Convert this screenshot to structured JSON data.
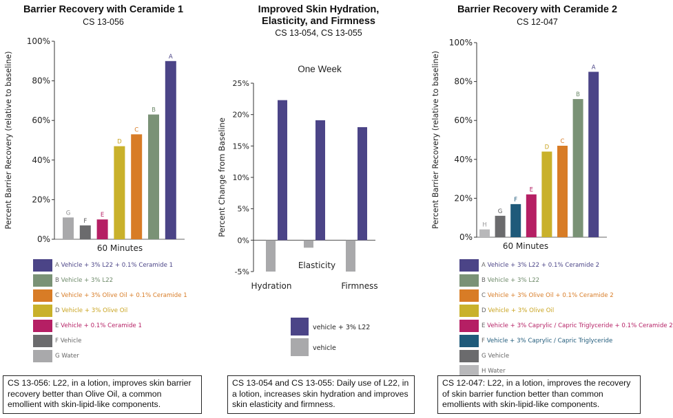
{
  "chart_data": [
    {
      "type": "bar",
      "title": "Barrier Recovery with Ceramide 1",
      "subtitle": "CS 13-056",
      "ylabel": "Percent Barrier Recovery (relative to baseline)",
      "xlabel": "60 Minutes",
      "ylim": [
        0,
        100
      ],
      "yticks": [
        "0%",
        "20%",
        "40%",
        "60%",
        "80%",
        "100%"
      ],
      "categories": [
        "G",
        "F",
        "E",
        "D",
        "C",
        "B",
        "A"
      ],
      "values": [
        11,
        7,
        10,
        47,
        53,
        63,
        90
      ],
      "colors": [
        "#a9a9ab",
        "#6b6b6d",
        "#b51f64",
        "#c9b12b",
        "#d87c26",
        "#7a9276",
        "#4b4487"
      ],
      "label_colors": [
        "#8a8a8c",
        "#555557",
        "#b51f64",
        "#c9a420",
        "#d87c26",
        "#6e8a6a",
        "#4b4487"
      ],
      "legend": [
        {
          "key": "A",
          "text": "Vehicle + 3% L22 + 0.1% Ceramide 1",
          "color": "#4b4487"
        },
        {
          "key": "B",
          "text": "Vehicle + 3% L22",
          "color": "#7a9276"
        },
        {
          "key": "C",
          "text": "Vehicle + 3% Olive Oil + 0.1% Ceramide 1",
          "color": "#d87c26"
        },
        {
          "key": "D",
          "text": "Vehicle + 3% Olive Oil",
          "color": "#c9b12b"
        },
        {
          "key": "E",
          "text": "Vehicle + 0.1% Ceramide 1",
          "color": "#b51f64"
        },
        {
          "key": "F",
          "text": "Vehicle",
          "color": "#6b6b6d"
        },
        {
          "key": "G",
          "text": "Water",
          "color": "#a9a9ab"
        }
      ]
    },
    {
      "type": "bar",
      "title": "Improved Skin Hydration, Elasticity, and Firmness",
      "subtitle": "CS 13-054, CS 13-055",
      "inner_title": "One Week",
      "ylabel": "Percent Change from Baseline",
      "ylim": [
        -5,
        25
      ],
      "yticks": [
        "-5%",
        "0%",
        "5%",
        "10%",
        "15%",
        "20%",
        "25%"
      ],
      "categories": [
        "Hydration",
        "Elasticity",
        "Firmness"
      ],
      "series": [
        {
          "name": "vehicle",
          "values": [
            -5,
            -1.2,
            -5
          ],
          "color": "#a9a9ab"
        },
        {
          "name": "vehicle + 3% L22",
          "values": [
            22.3,
            19.1,
            18
          ],
          "color": "#4b4487"
        }
      ]
    },
    {
      "type": "bar",
      "title": "Barrier Recovery with Ceramide 2",
      "subtitle": "CS 12-047",
      "ylabel": "Percent Barrier Recovery (relative to baseline)",
      "xlabel": "60 Minutes",
      "ylim": [
        0,
        100
      ],
      "yticks": [
        "0%",
        "20%",
        "40%",
        "60%",
        "80%",
        "100%"
      ],
      "categories": [
        "H",
        "G",
        "F",
        "E",
        "D",
        "C",
        "B",
        "A"
      ],
      "values": [
        4,
        11,
        17,
        22,
        44,
        47,
        71,
        85
      ],
      "colors": [
        "#b8b8ba",
        "#6b6b6d",
        "#1f5a7a",
        "#b51f64",
        "#c9b12b",
        "#d87c26",
        "#7a9276",
        "#4b4487"
      ],
      "label_colors": [
        "#9a9a9c",
        "#555557",
        "#1f5a7a",
        "#b51f64",
        "#c9a420",
        "#d87c26",
        "#6e8a6a",
        "#4b4487"
      ],
      "legend": [
        {
          "key": "A",
          "text": "Vehicle + 3% L22 + 0.1% Ceramide 2",
          "color": "#4b4487"
        },
        {
          "key": "B",
          "text": "Vehicle + 3% L22",
          "color": "#7a9276"
        },
        {
          "key": "C",
          "text": "Vehicle + 3% Olive Oil + 0.1% Ceramide 2",
          "color": "#d87c26"
        },
        {
          "key": "D",
          "text": "Vehicle + 3% Olive Oil",
          "color": "#c9b12b"
        },
        {
          "key": "E",
          "text": "Vehicle + 3% Caprylic / Capric Triglyceride + 0.1% Ceramide 2",
          "color": "#b51f64"
        },
        {
          "key": "F",
          "text": "Vehicle + 3% Caprylic / Capric Triglyceride",
          "color": "#1f5a7a"
        },
        {
          "key": "G",
          "text": "Vehicle",
          "color": "#6b6b6d"
        },
        {
          "key": "H",
          "text": "Water",
          "color": "#b8b8ba"
        }
      ]
    }
  ],
  "captions": [
    "CS 13-056: L22, in a lotion, improves skin barrier recovery better than Olive Oil, a common emollient with skin-lipid-like components.",
    "CS 13-054 and CS 13-055: Daily use of L22, in a lotion, increases skin hydration and improves skin elasticity and firmness.",
    "CS 12-047: L22, in a lotion, improves the recovery of skin barrier function better than common emollients with skin-lipid-like components."
  ],
  "title2_lines": [
    "Improved Skin Hydration,",
    "Elasticity, and Firmness"
  ]
}
